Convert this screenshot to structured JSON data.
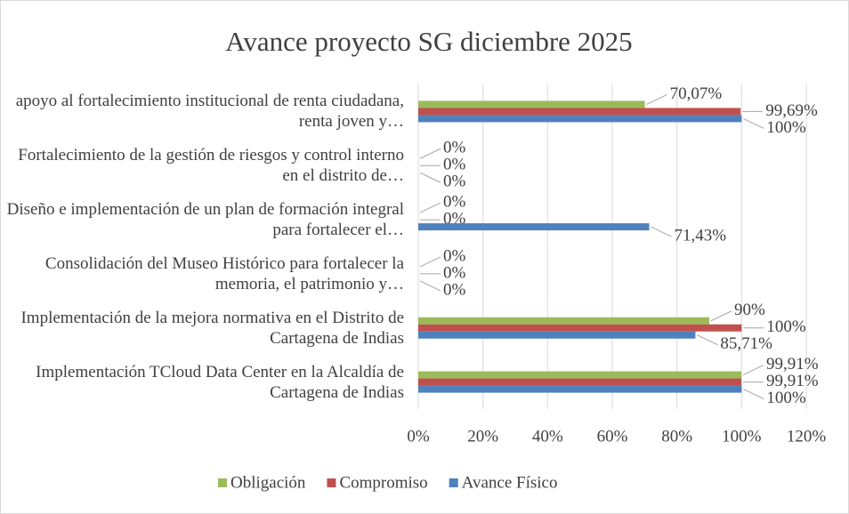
{
  "chart_data": {
    "type": "hbar",
    "title": "Avance proyecto SG diciembre 2025",
    "categories": [
      "apoyo al fortalecimiento institucional de renta ciudadana, renta joven y…",
      "Fortalecimiento de la gestión de riesgos y control interno en el distrito de…",
      "Diseño e implementación de un plan de formación integral para fortalecer el…",
      "Consolidación del Museo Histórico para fortalecer la memoria, el patrimonio y…",
      "Implementación de la mejora normativa en el Distrito de Cartagena de Indias",
      "Implementación TCloud Data Center en la Alcaldía de Cartagena de Indias"
    ],
    "series": [
      {
        "name": "Obligación",
        "color": "#9bbb59",
        "values": [
          70.07,
          0,
          0,
          0,
          90,
          99.91
        ],
        "value_labels": [
          "70,07%",
          "0%",
          "0%",
          "0%",
          "90%",
          "99,91%"
        ]
      },
      {
        "name": "Compromiso",
        "color": "#c0504d",
        "values": [
          99.69,
          0,
          0,
          0,
          100,
          99.91
        ],
        "value_labels": [
          "99,69%",
          "0%",
          "0%",
          "0%",
          "100%",
          "99,91%"
        ]
      },
      {
        "name": "Avance Físico",
        "color": "#4f81bd",
        "values": [
          100,
          0,
          71.43,
          0,
          85.71,
          100
        ],
        "value_labels": [
          "100%",
          "0%",
          "71,43%",
          "0%",
          "85,71%",
          "100%"
        ]
      }
    ],
    "xlim": [
      0,
      120
    ],
    "xticks": [
      {
        "value": 0,
        "label": "0%"
      },
      {
        "value": 20,
        "label": "20%"
      },
      {
        "value": 40,
        "label": "40%"
      },
      {
        "value": 60,
        "label": "60%"
      },
      {
        "value": 80,
        "label": "80%"
      },
      {
        "value": 100,
        "label": "100%"
      },
      {
        "value": 120,
        "label": "120%"
      }
    ],
    "grid": true,
    "legend": "bottom"
  }
}
